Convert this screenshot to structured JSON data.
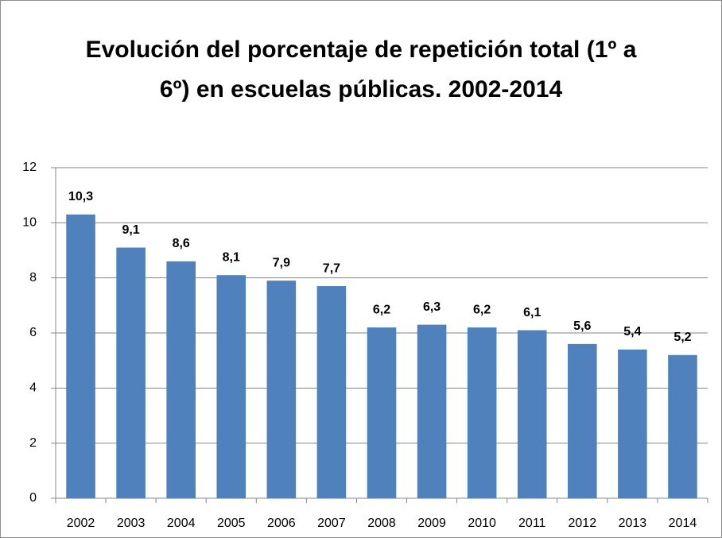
{
  "chart_data": {
    "type": "bar",
    "title": "Evolución del porcentaje de repetición total (1º a 6º) en escuelas públicas. 2002-2014",
    "categories": [
      "2002",
      "2003",
      "2004",
      "2005",
      "2006",
      "2007",
      "2008",
      "2009",
      "2010",
      "2011",
      "2012",
      "2013",
      "2014"
    ],
    "values": [
      10.3,
      9.1,
      8.6,
      8.1,
      7.9,
      7.7,
      6.2,
      6.3,
      6.2,
      6.1,
      5.6,
      5.4,
      5.2
    ],
    "value_labels": [
      "10,3",
      "9,1",
      "8,6",
      "8,1",
      "7,9",
      "7,7",
      "6,2",
      "6,3",
      "6,2",
      "6,1",
      "5,6",
      "5,4",
      "5,2"
    ],
    "color": "#4f81bd",
    "ylim": [
      0,
      12
    ],
    "yticks": [
      0,
      2,
      4,
      6,
      8,
      10,
      12
    ],
    "grid": true
  }
}
